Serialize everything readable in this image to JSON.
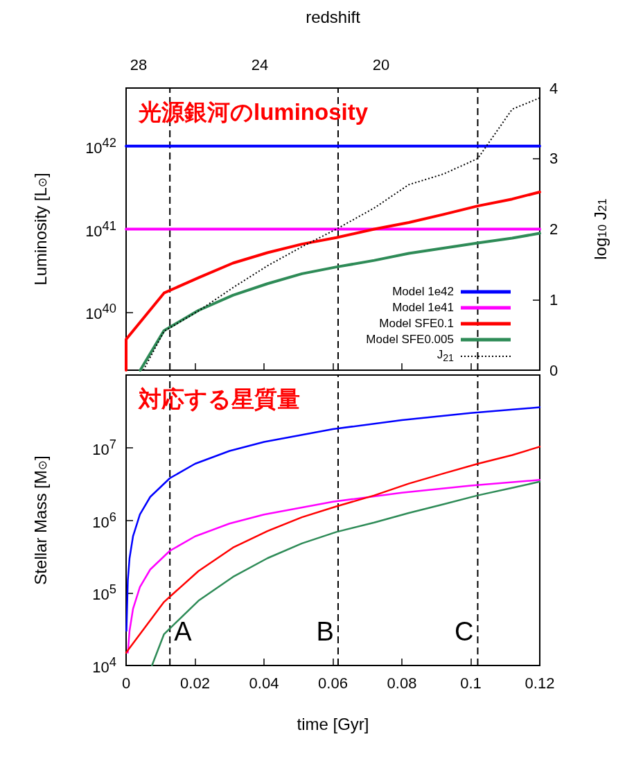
{
  "chart_data": [
    {
      "type": "line",
      "title": "光源銀河のluminosity",
      "ylabel": "Luminosity [L$_{⊙}$]",
      "y2label": "log$_{10}$ J$_{21}$",
      "x2label": "redshift",
      "xlim": [
        0,
        0.12
      ],
      "xticks": [
        {
          "value": 0,
          "label": null
        },
        {
          "value": 0.02,
          "label": null
        },
        {
          "value": 0.04,
          "label": null
        },
        {
          "value": 0.06,
          "label": null
        },
        {
          "value": 0.08,
          "label": null
        },
        {
          "value": 0.1,
          "label": null
        },
        {
          "value": 0.12,
          "label": null
        }
      ],
      "annotations": [
        "28",
        "24",
        "20"
      ],
      "ylim": [
        2e+39,
        5e+42
      ],
      "yticks": [
        {
          "value": 1e+40,
          "label": "10$^{40}$"
        },
        {
          "value": 1e+41,
          "label": "10$^{41}$"
        },
        {
          "value": 1e+42,
          "label": "10$^{42}$"
        }
      ],
      "y2lim": [
        0,
        4
      ],
      "y2ticks": [
        0,
        1,
        2,
        3,
        4
      ],
      "log": "y",
      "legend": "bottom right",
      "tick_labels": "y",
      "ref_lines": [
        {
          "axis": "x",
          "value": 0.0127,
          "color": "#000000",
          "line_style": "dashed"
        },
        {
          "axis": "x",
          "value": 0.0615,
          "color": "#000000",
          "line_style": "dashed"
        },
        {
          "axis": "x",
          "value": 0.102,
          "color": "#000000",
          "line_style": "dashed"
        }
      ],
      "series": [
        {
          "name": "Model 1e42",
          "color": "#0000ff",
          "x": [
            0,
            0.12
          ],
          "values": [
            1e+42,
            1e+42
          ]
        },
        {
          "name": "Model 1e41",
          "color": "#ff00ff",
          "x": [
            0,
            0.12
          ],
          "values": [
            1e+41,
            1e+41
          ]
        },
        {
          "name": "Model SFE0.1",
          "color": "#ff0000",
          "x": [
            0,
            0,
            0.011,
            0.021,
            0.031,
            0.041,
            0.051,
            0.061,
            0.072,
            0.082,
            0.092,
            0.102,
            0.112,
            0.12
          ],
          "values": [
            2e+39,
            4.7e+39,
            1.7e+40,
            2.6e+40,
            3.9e+40,
            5.2e+40,
            6.6e+40,
            7.9e+40,
            1e+41,
            1.2e+41,
            1.5e+41,
            1.9e+41,
            2.3e+41,
            2.8e+41
          ]
        },
        {
          "name": "Model SFE0.005",
          "color": "#2e8b57",
          "x": [
            0.0041,
            0.011,
            0.021,
            0.031,
            0.041,
            0.051,
            0.061,
            0.072,
            0.082,
            0.092,
            0.102,
            0.112,
            0.12
          ],
          "values": [
            2e+39,
            6e+39,
            1.05e+40,
            1.6e+40,
            2.2e+40,
            2.9e+40,
            3.5e+40,
            4.2e+40,
            5.1e+40,
            5.9e+40,
            6.8e+40,
            7.8e+40,
            8.9e+40
          ]
        },
        {
          "name": "J$_{21}$",
          "color": "#000000",
          "axis": "y2",
          "line_style": "dotted",
          "x": [
            0.005,
            0.011,
            0.021,
            0.031,
            0.041,
            0.051,
            0.061,
            0.072,
            0.082,
            0.092,
            0.102,
            0.112,
            0.12
          ],
          "values": [
            0,
            0.55,
            0.84,
            1.17,
            1.48,
            1.75,
            2.0,
            2.3,
            2.63,
            2.78,
            3.0,
            3.7,
            3.86
          ]
        }
      ]
    },
    {
      "type": "line",
      "title": "対応する星質量",
      "ylabel": "Stellar Mass [M$_{⊙}$]",
      "xlabel": "time [Gyr]",
      "xlim": [
        0,
        0.12
      ],
      "xticks": [
        0,
        0.02,
        0.04,
        0.06,
        0.08,
        0.1,
        0.12
      ],
      "ylim": [
        10000.0,
        100000000.0
      ],
      "yticks": [
        {
          "value": 10000.0,
          "label": "10$^{4}$"
        },
        {
          "value": 100000.0,
          "label": "10$^{5}$"
        },
        {
          "value": 1000000.0,
          "label": "10$^{6}$"
        },
        {
          "value": 10000000.0,
          "label": "10$^{7}$"
        }
      ],
      "log": "y",
      "ref_lines": [
        {
          "axis": "x",
          "value": 0.0127,
          "label": "A",
          "color": "#000000",
          "line_style": "dashed"
        },
        {
          "axis": "x",
          "value": 0.0615,
          "label": "B",
          "color": "#000000",
          "line_style": "dashed"
        },
        {
          "axis": "x",
          "value": 0.102,
          "label": "C",
          "color": "#000000",
          "line_style": "dashed"
        }
      ],
      "series": [
        {
          "color": "#0000ff",
          "x": [
            0.0001,
            0.0005,
            0.001,
            0.002,
            0.004,
            0.007,
            0.0127,
            0.02,
            0.03,
            0.04,
            0.06,
            0.08,
            0.1,
            0.12
          ],
          "values": [
            30000.0,
            150000.0,
            300000.0,
            600000.0,
            1200000.0,
            2100000.0,
            3800000.0,
            6000000.0,
            9000000.0,
            12000000.0,
            18000000.0,
            24000000.0,
            30000000.0,
            36000000.0
          ]
        },
        {
          "color": "#ff00ff",
          "x": [
            0.0005,
            0.001,
            0.002,
            0.004,
            0.007,
            0.0127,
            0.02,
            0.03,
            0.04,
            0.06,
            0.08,
            0.1,
            0.12
          ],
          "values": [
            15000.0,
            30000.0,
            60000.0,
            120000.0,
            210000.0,
            380000.0,
            600000.0,
            900000.0,
            1200000.0,
            1800000.0,
            2400000.0,
            3000000.0,
            3600000.0
          ]
        },
        {
          "color": "#ff0000",
          "x": [
            0,
            0.011,
            0.021,
            0.031,
            0.041,
            0.051,
            0.061,
            0.072,
            0.082,
            0.092,
            0.102,
            0.112,
            0.12
          ],
          "values": [
            15000.0,
            75000.0,
            200000.0,
            420000.0,
            710000.0,
            1100000.0,
            1550000.0,
            2200000.0,
            3200000.0,
            4400000.0,
            6000000.0,
            7900000.0,
            10300000.0
          ]
        },
        {
          "color": "#2e8b57",
          "x": [
            0.0075,
            0.011,
            0.021,
            0.031,
            0.041,
            0.051,
            0.061,
            0.072,
            0.082,
            0.092,
            0.102,
            0.112,
            0.12
          ],
          "values": [
            10000.0,
            27000.0,
            78000.0,
            166000.0,
            300000.0,
            480000.0,
            690000.0,
            930000.0,
            1260000.0,
            1660000.0,
            2200000.0,
            2800000.0,
            3400000.0
          ]
        }
      ]
    }
  ]
}
